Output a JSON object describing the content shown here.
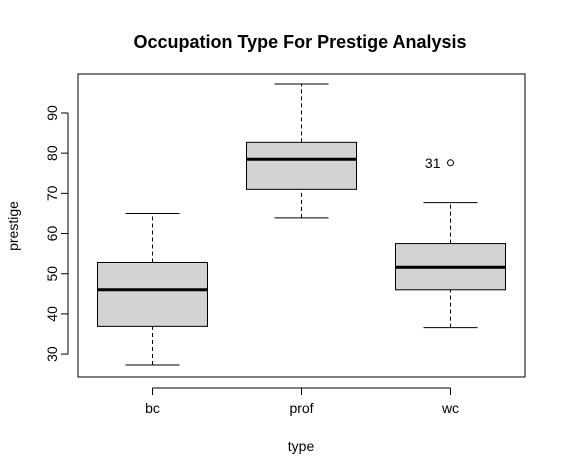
{
  "chart_data": {
    "type": "boxplot",
    "title": "Occupation Type For Prestige Analysis",
    "xlabel": "type",
    "ylabel": "prestige",
    "ylim": [
      24.3,
      99.7
    ],
    "yticks": [
      30,
      40,
      50,
      60,
      70,
      80,
      90
    ],
    "categories": [
      "bc",
      "prof",
      "wc"
    ],
    "box_color": "#d3d3d3",
    "boxes": [
      {
        "category": "bc",
        "whisker_low": 27.3,
        "q1": 36.9,
        "median": 46.0,
        "q3": 52.8,
        "whisker_high": 65.0,
        "outliers": []
      },
      {
        "category": "prof",
        "whisker_low": 63.9,
        "q1": 71.0,
        "median": 78.5,
        "q3": 82.7,
        "whisker_high": 97.2,
        "outliers": []
      },
      {
        "category": "wc",
        "whisker_low": 36.6,
        "q1": 46.0,
        "median": 51.6,
        "q3": 57.5,
        "whisker_high": 67.7,
        "outliers": [
          {
            "value": 77.6,
            "label": "31"
          }
        ]
      }
    ]
  }
}
